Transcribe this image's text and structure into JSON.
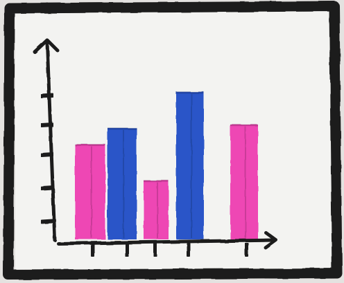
{
  "chart_data": {
    "type": "bar",
    "categories": [
      "",
      "",
      "",
      "",
      ""
    ],
    "values": [
      2.9,
      3.4,
      1.8,
      4.5,
      3.5
    ],
    "ylim": [
      0,
      5
    ],
    "y_ticks": [
      1,
      2,
      3,
      4,
      5
    ],
    "title": "",
    "xlabel": "",
    "ylabel": "",
    "grid": false,
    "legend": "none",
    "bar_colors": [
      "#ee46b4",
      "#2a55c8",
      "#ee46b4",
      "#2a55c8",
      "#ee46b4"
    ],
    "ink_color": "#1b1b1b",
    "paper_color": "#f3f3f1"
  }
}
